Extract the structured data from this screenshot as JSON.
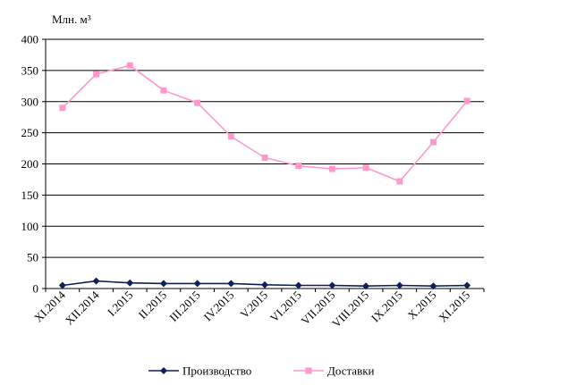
{
  "chart_data": {
    "type": "line",
    "unit_label": "Млн. м³",
    "categories": [
      "XI.2014",
      "XII.2014",
      "I.2015",
      "II.2015",
      "III.2015",
      "IV.2015",
      "V.2015",
      "VI.2015",
      "VII.2015",
      "VIII.2015",
      "IX.2015",
      "X.2015",
      "XI.2015"
    ],
    "ylim": [
      0,
      400
    ],
    "yticks": [
      0,
      50,
      100,
      150,
      200,
      250,
      300,
      350,
      400
    ],
    "grid": true,
    "legend_position": "bottom",
    "series": [
      {
        "name": "Производство",
        "color": "#0f1f5c",
        "marker": "diamond",
        "values": [
          5,
          12,
          9,
          8,
          8,
          8,
          6,
          5,
          5,
          4,
          5,
          4,
          5
        ]
      },
      {
        "name": "Доставки",
        "color": "#ff99cc",
        "marker": "square",
        "values": [
          290,
          344,
          358,
          318,
          298,
          244,
          210,
          197,
          192,
          194,
          172,
          235,
          301
        ]
      }
    ]
  }
}
